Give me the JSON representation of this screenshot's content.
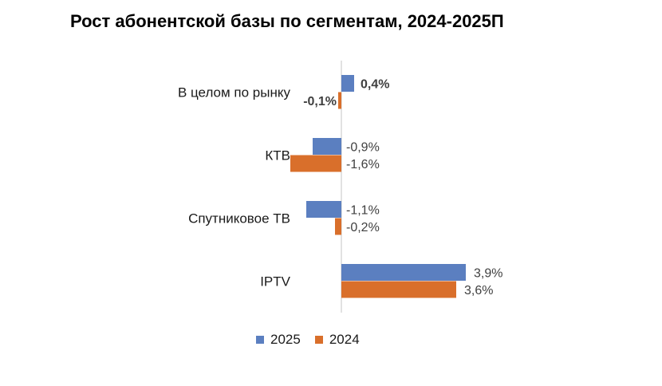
{
  "chart_data": {
    "type": "bar",
    "orientation": "horizontal",
    "title": "Рост абонентской базы по сегментам, 2024-2025П",
    "categories": [
      "В целом по рынку",
      "КТВ",
      "Спутниковое ТВ",
      "IPTV"
    ],
    "series": [
      {
        "name": "2025",
        "color": "#5B7FC0",
        "values": [
          0.4,
          -0.9,
          -1.1,
          3.9
        ],
        "labels": [
          "0,4%",
          "-0,9%",
          "-1,1%",
          "3,9%"
        ]
      },
      {
        "name": "2024",
        "color": "#D96F2B",
        "values": [
          -0.1,
          -1.6,
          -0.2,
          3.6
        ],
        "labels": [
          "-0,1%",
          "-1,6%",
          "-0,2%",
          "3,6%"
        ]
      }
    ],
    "xlim": [
      -2,
      4.5
    ],
    "legend_position": "bottom",
    "grid": false
  }
}
